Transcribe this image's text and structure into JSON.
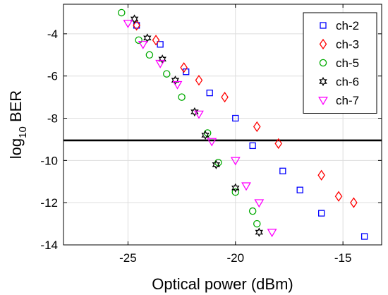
{
  "chart_data": {
    "type": "scatter",
    "title": "",
    "xlabel": "Optical power (dBm)",
    "ylabel_main": "log",
    "ylabel_sub": "10",
    "ylabel_tail": " BER",
    "xlim": [
      -28,
      -13.2
    ],
    "ylim": [
      -14,
      -2.6
    ],
    "xticks": [
      -25,
      -20,
      -15
    ],
    "xtick_labels": [
      "-25",
      "-20",
      "-15"
    ],
    "yticks": [
      -14,
      -12,
      -10,
      -8,
      -6,
      -4
    ],
    "ytick_labels": [
      "-14",
      "-12",
      "-10",
      "-8",
      "-6",
      "-4"
    ],
    "grid": true,
    "legend_position": "top-right",
    "threshold": -9.05,
    "series": [
      {
        "name": "ch-2",
        "marker": "square",
        "color": "#0000ff",
        "points": [
          [
            -24.6,
            -3.6
          ],
          [
            -23.5,
            -4.5
          ],
          [
            -22.3,
            -5.8
          ],
          [
            -21.2,
            -6.8
          ],
          [
            -20.0,
            -8.0
          ],
          [
            -19.2,
            -9.3
          ],
          [
            -17.8,
            -10.5
          ],
          [
            -17.0,
            -11.4
          ],
          [
            -16.0,
            -12.5
          ],
          [
            -14.0,
            -13.6
          ]
        ]
      },
      {
        "name": "ch-3",
        "marker": "diamond",
        "color": "#ff0000",
        "points": [
          [
            -24.6,
            -3.6
          ],
          [
            -23.7,
            -4.3
          ],
          [
            -22.4,
            -5.6
          ],
          [
            -21.7,
            -6.2
          ],
          [
            -20.5,
            -7.0
          ],
          [
            -19.0,
            -8.4
          ],
          [
            -18.0,
            -9.2
          ],
          [
            -16.0,
            -10.7
          ],
          [
            -15.2,
            -11.7
          ],
          [
            -14.5,
            -12.0
          ]
        ]
      },
      {
        "name": "ch-5",
        "marker": "circle",
        "color": "#00aa00",
        "points": [
          [
            -25.3,
            -3.0
          ],
          [
            -24.5,
            -4.3
          ],
          [
            -24.0,
            -5.0
          ],
          [
            -23.2,
            -5.9
          ],
          [
            -22.5,
            -7.0
          ],
          [
            -21.3,
            -8.7
          ],
          [
            -20.8,
            -10.1
          ],
          [
            -20.0,
            -11.5
          ],
          [
            -19.2,
            -12.4
          ],
          [
            -19.0,
            -13.0
          ]
        ]
      },
      {
        "name": "ch-6",
        "marker": "hexagram",
        "color": "#000000",
        "points": [
          [
            -24.7,
            -3.3
          ],
          [
            -24.1,
            -4.2
          ],
          [
            -23.4,
            -5.2
          ],
          [
            -22.8,
            -6.2
          ],
          [
            -21.9,
            -7.7
          ],
          [
            -21.4,
            -8.8
          ],
          [
            -20.9,
            -10.2
          ],
          [
            -20.0,
            -11.3
          ],
          [
            -18.9,
            -13.4
          ]
        ]
      },
      {
        "name": "ch-7",
        "marker": "triangle-down",
        "color": "#ff00ff",
        "points": [
          [
            -25.0,
            -3.5
          ],
          [
            -24.3,
            -4.5
          ],
          [
            -23.5,
            -5.4
          ],
          [
            -22.7,
            -6.4
          ],
          [
            -21.7,
            -7.8
          ],
          [
            -21.1,
            -9.1
          ],
          [
            -20.0,
            -10.0
          ],
          [
            -19.5,
            -11.2
          ],
          [
            -18.9,
            -12.0
          ],
          [
            -18.3,
            -13.4
          ]
        ]
      }
    ]
  }
}
